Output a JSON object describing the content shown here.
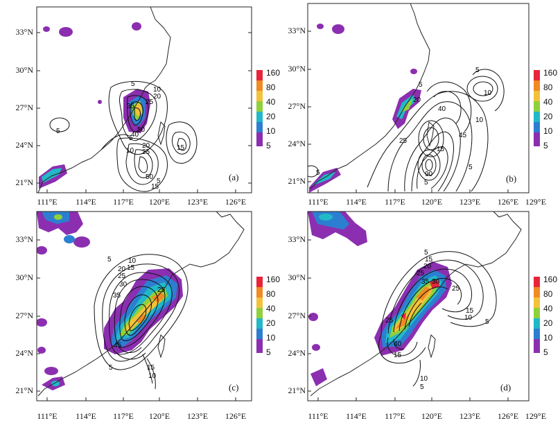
{
  "lat_labels": [
    "33°N",
    "30°N",
    "27°N",
    "24°N",
    "21°N"
  ],
  "lon_labels": [
    "111°E",
    "114°E",
    "117°E",
    "120°E",
    "123°E",
    "126°E",
    "129°E"
  ],
  "colorbar": {
    "levels": [
      "5",
      "10",
      "20",
      "40",
      "80",
      "160"
    ],
    "colors": [
      "#8b2fb0",
      "#2c7fd0",
      "#22b8c8",
      "#8fd13a",
      "#f3c23a",
      "#f08a22",
      "#e8243a"
    ]
  },
  "panels": [
    {
      "id": "a",
      "label": "(a)",
      "contour_labels": [
        "5",
        "10",
        "20",
        "25",
        "35",
        "40",
        "50",
        "5",
        "10",
        "20",
        "25",
        "50",
        "15",
        "5",
        "15",
        "5"
      ]
    },
    {
      "id": "b",
      "label": "(b)",
      "contour_labels": [
        "5",
        "5",
        "10",
        "20",
        "25",
        "40",
        "45",
        "15",
        "90",
        "5",
        "10",
        "5",
        "5"
      ]
    },
    {
      "id": "c",
      "label": "(c)",
      "contour_labels": [
        "5",
        "10",
        "15",
        "20",
        "25",
        "30",
        "35",
        "25",
        "45",
        "15",
        "10",
        "5"
      ]
    },
    {
      "id": "d",
      "label": "(d)",
      "contour_labels": [
        "5",
        "15",
        "20",
        "25",
        "30",
        "35",
        "25",
        "15",
        "10",
        "40",
        "25",
        "15",
        "10",
        "5",
        "5"
      ]
    }
  ]
}
